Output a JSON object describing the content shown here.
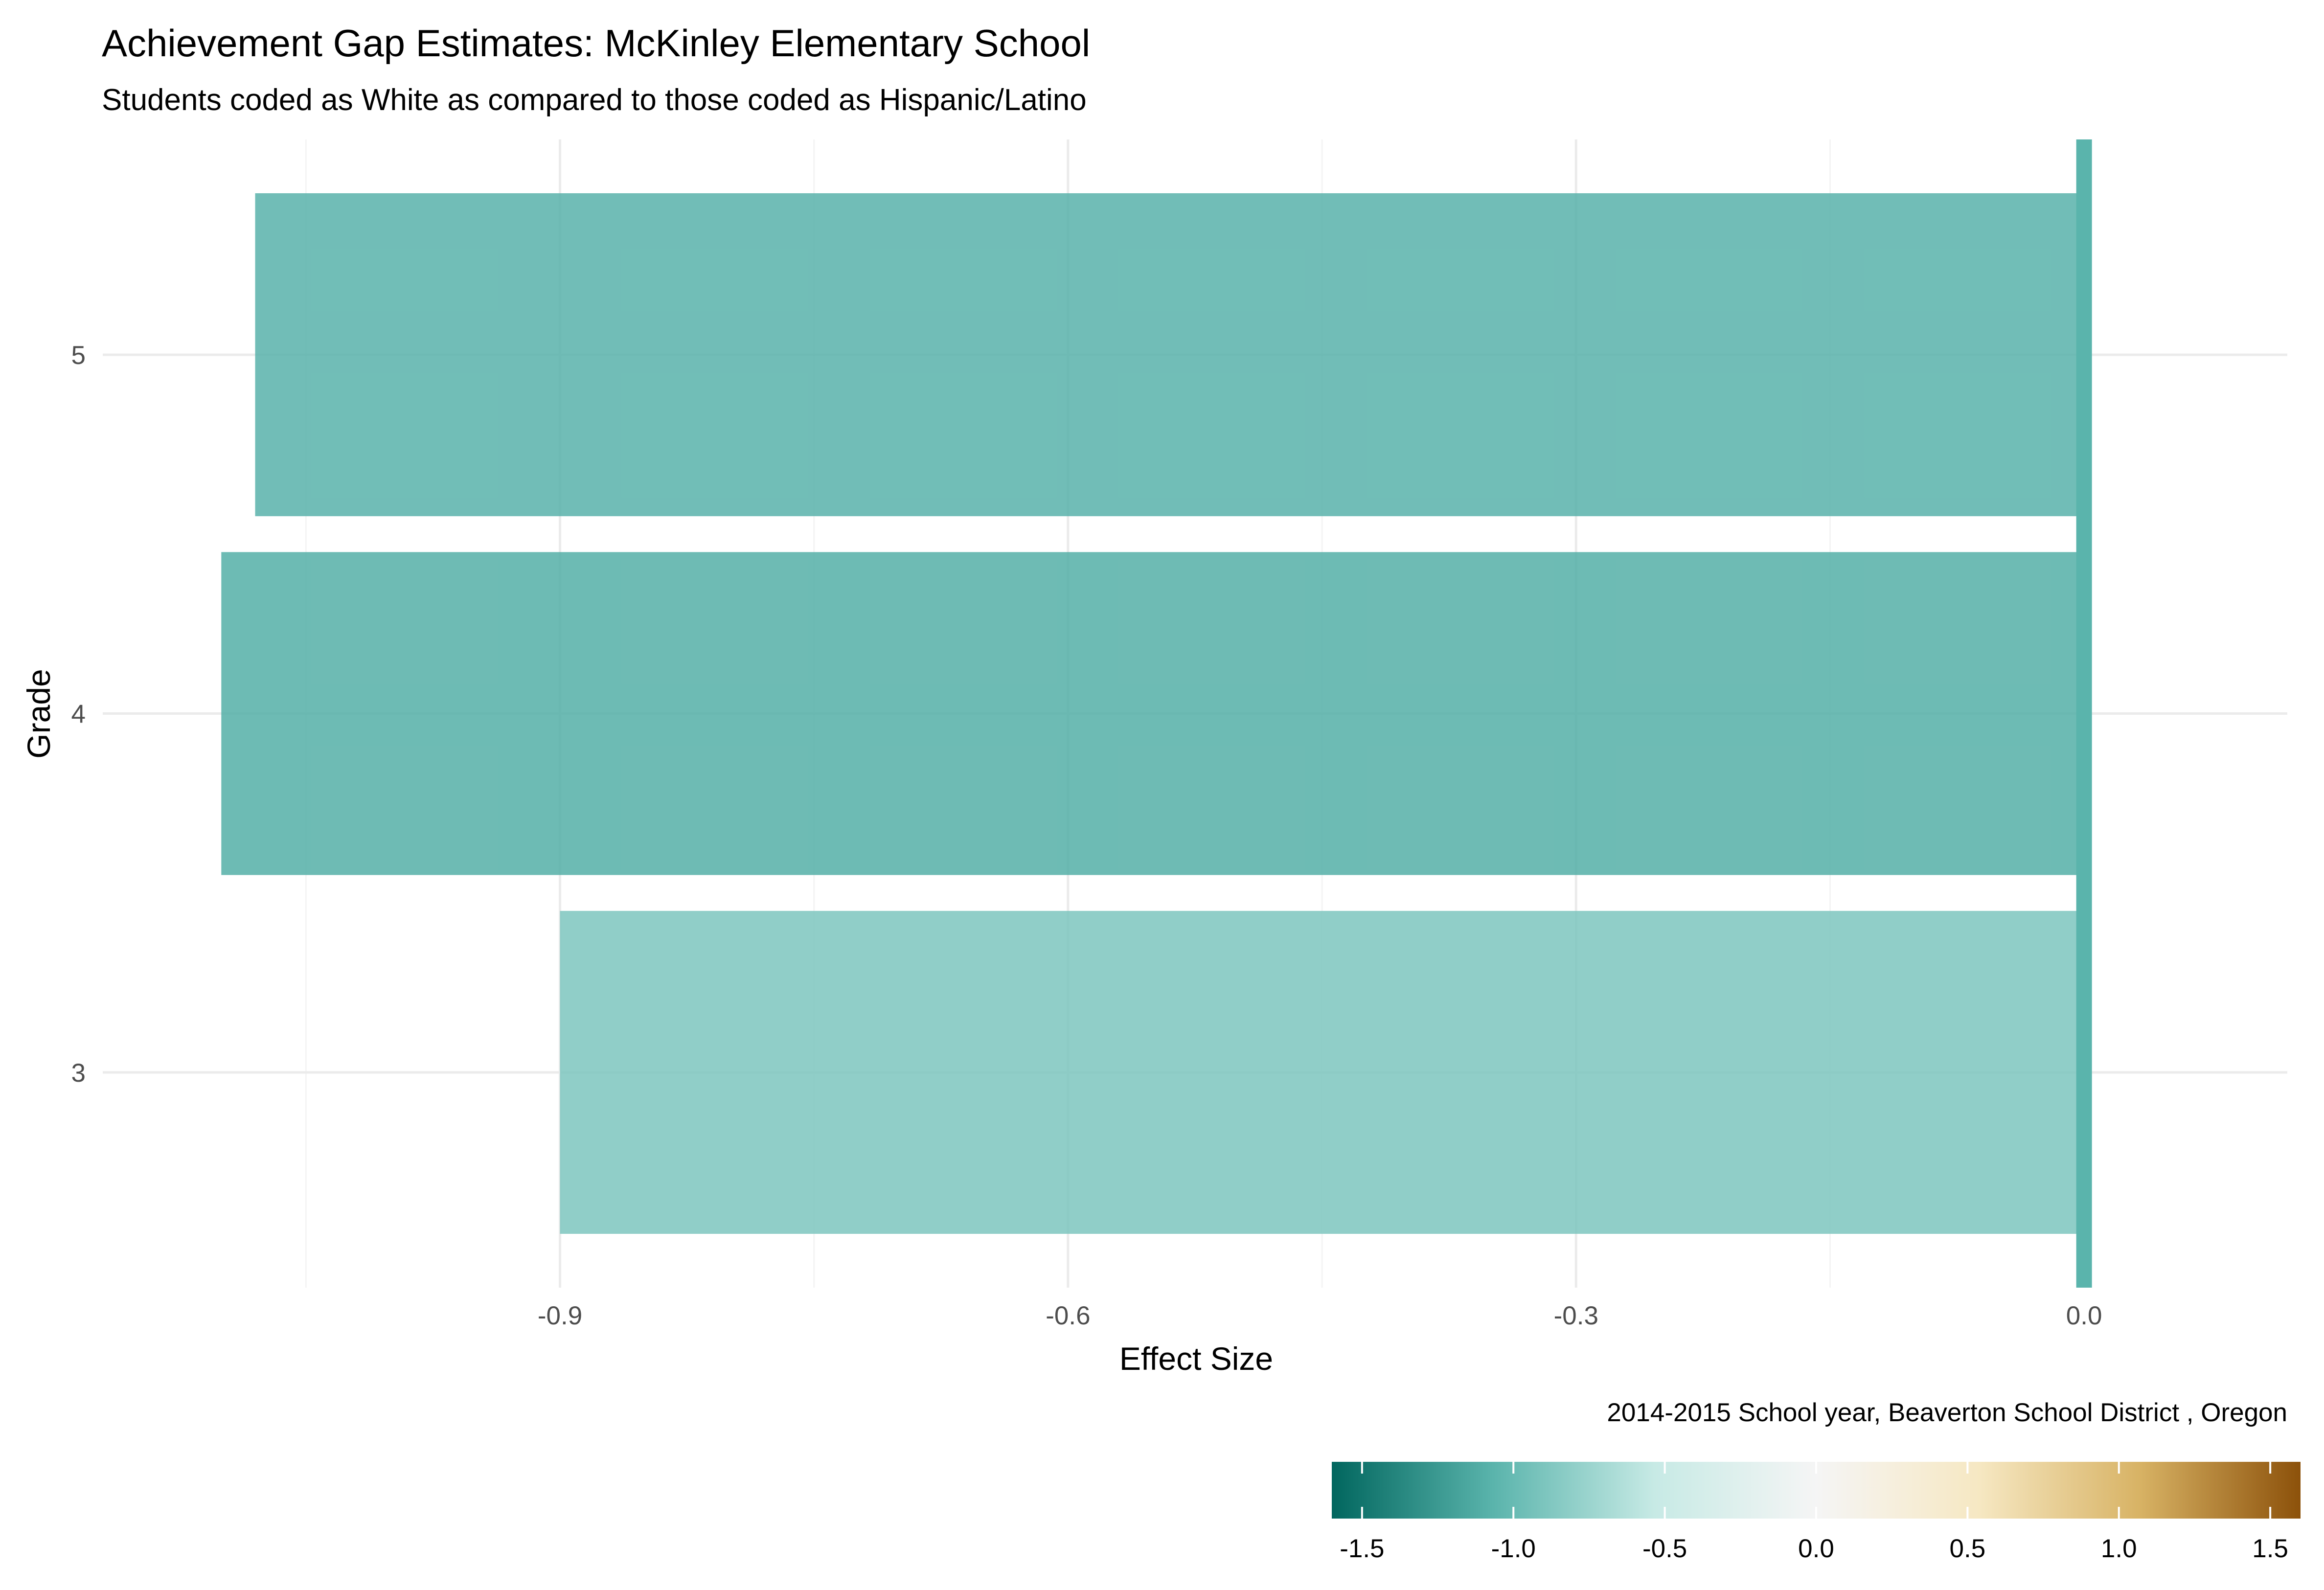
{
  "chart_data": {
    "type": "bar",
    "orientation": "horizontal",
    "title": "Achievement Gap Estimates: McKinley Elementary School",
    "subtitle": "Students coded as White as compared to those coded as Hispanic/Latino",
    "xlabel": "Effect Size",
    "ylabel": "Grade",
    "caption": "2014-2015 School year,  Beaverton School District , Oregon",
    "categories": [
      "3",
      "4",
      "5"
    ],
    "values": [
      -0.9,
      -1.1,
      -1.08
    ],
    "xlim": [
      -1.17,
      0.12
    ],
    "x_ticks": [
      -0.9,
      -0.6,
      -0.3,
      0.0
    ],
    "x_tick_labels": [
      "-0.9",
      "-0.6",
      "-0.3",
      "0.0"
    ],
    "zero_line": 0.0,
    "grid": true,
    "legend": {
      "type": "colorbar",
      "placement": "bottom-right",
      "limits": [
        -1.6,
        1.6
      ],
      "ticks": [
        -1.5,
        -1.0,
        -0.5,
        0.0,
        0.5,
        1.0,
        1.5
      ],
      "tick_labels": [
        "-1.5",
        "-1.0",
        "-0.5",
        "0.0",
        "0.5",
        "1.0",
        "1.5"
      ],
      "palette": [
        "#01665e",
        "#5ab4ac",
        "#c7eae5",
        "#f5f5f5",
        "#f6e8c3",
        "#d8b365",
        "#8c510a"
      ]
    },
    "colors": {
      "zero_line": "#5ab4ac",
      "grid": "#ebebeb",
      "grid_minor": "#f4f4f4"
    }
  }
}
